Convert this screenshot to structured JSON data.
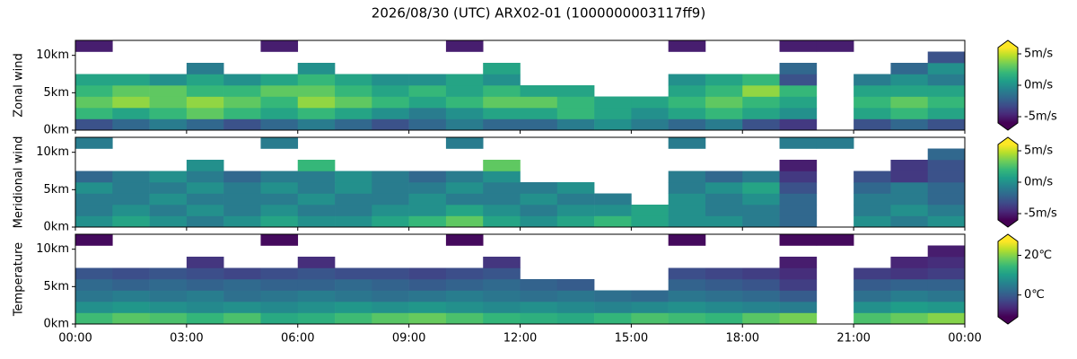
{
  "title": "2026/08/30 (UTC) ARX02-01 (1000000003117ff9)",
  "chart_data": [
    {
      "type": "heatmap",
      "ylabel": "Zonal wind",
      "colormap": "viridis",
      "xbins": [
        0,
        1,
        2,
        3,
        4,
        5,
        6,
        7,
        8,
        9,
        10,
        11,
        12,
        13,
        14,
        15,
        16,
        17,
        18,
        19,
        20,
        21,
        22,
        23,
        24
      ],
      "ybins": [
        0,
        1.5,
        3,
        4.5,
        6,
        7.5,
        9,
        10.5,
        12
      ],
      "ylim": [
        0,
        12
      ],
      "yticks": [
        {
          "value": 0,
          "label": "0km"
        },
        {
          "value": 5,
          "label": "5km"
        },
        {
          "value": 10,
          "label": "10km"
        }
      ],
      "clim": [
        -6,
        6
      ],
      "colorbar_extend": "both",
      "cticks": [
        {
          "value": 5,
          "label": "5m/s"
        },
        {
          "value": 0,
          "label": "0m/s"
        },
        {
          "value": -5,
          "label": "-5m/s"
        }
      ],
      "values": [
        [
          -3,
          -2,
          -1,
          -2,
          -3,
          -2,
          -1,
          -2,
          -3,
          -2,
          -1,
          -2,
          -2,
          -1,
          0,
          -1,
          -2,
          -1,
          -3,
          -4,
          null,
          -3,
          -2,
          -3
        ],
        [
          2,
          1,
          2,
          3,
          2,
          1,
          2,
          1,
          0,
          -1,
          0,
          1,
          1,
          2,
          1,
          0,
          1,
          2,
          1,
          0,
          null,
          1,
          2,
          1
        ],
        [
          3,
          4,
          3,
          4,
          3,
          2,
          4,
          3,
          2,
          1,
          2,
          3,
          3,
          2,
          1,
          1,
          2,
          3,
          2,
          1,
          null,
          2,
          3,
          2
        ],
        [
          2,
          3,
          3,
          2,
          2,
          3,
          3,
          2,
          1,
          2,
          1,
          2,
          1,
          1,
          null,
          null,
          1,
          2,
          4,
          2,
          null,
          1,
          1,
          1
        ],
        [
          1,
          1,
          0,
          1,
          0,
          1,
          2,
          1,
          0,
          0,
          1,
          0,
          null,
          null,
          null,
          null,
          0,
          1,
          2,
          -3,
          null,
          -1,
          0,
          -1
        ],
        [
          null,
          null,
          null,
          -1,
          null,
          null,
          0,
          null,
          null,
          null,
          null,
          1,
          null,
          null,
          null,
          null,
          null,
          null,
          null,
          -2,
          null,
          null,
          -2,
          0
        ],
        [
          null,
          null,
          null,
          null,
          null,
          null,
          null,
          null,
          null,
          null,
          null,
          null,
          null,
          null,
          null,
          null,
          null,
          null,
          null,
          null,
          null,
          null,
          null,
          -3
        ],
        [
          -5,
          null,
          null,
          null,
          null,
          -5,
          null,
          null,
          null,
          null,
          -5,
          null,
          null,
          null,
          null,
          null,
          -5,
          null,
          null,
          -5,
          -5,
          null,
          null,
          null
        ]
      ]
    },
    {
      "type": "heatmap",
      "ylabel": "Meridional wind",
      "colormap": "viridis",
      "xbins": [
        0,
        1,
        2,
        3,
        4,
        5,
        6,
        7,
        8,
        9,
        10,
        11,
        12,
        13,
        14,
        15,
        16,
        17,
        18,
        19,
        20,
        21,
        22,
        23,
        24
      ],
      "ybins": [
        0,
        1.5,
        3,
        4.5,
        6,
        7.5,
        9,
        10.5,
        12
      ],
      "ylim": [
        0,
        12
      ],
      "yticks": [
        {
          "value": 0,
          "label": "0km"
        },
        {
          "value": 5,
          "label": "5km"
        },
        {
          "value": 10,
          "label": "10km"
        }
      ],
      "clim": [
        -6,
        6
      ],
      "colorbar_extend": "both",
      "cticks": [
        {
          "value": 5,
          "label": "5m/s"
        },
        {
          "value": 0,
          "label": "0m/s"
        },
        {
          "value": -5,
          "label": "-5m/s"
        }
      ],
      "values": [
        [
          0,
          1,
          0,
          -1,
          0,
          1,
          0,
          0,
          1,
          2,
          3,
          1,
          0,
          1,
          2,
          1,
          0,
          0,
          -1,
          -2,
          null,
          0,
          -1,
          0
        ],
        [
          -1,
          0,
          -1,
          0,
          -1,
          0,
          -1,
          -1,
          0,
          0,
          1,
          0,
          -1,
          0,
          0,
          1,
          0,
          -1,
          -1,
          -2,
          null,
          -1,
          0,
          -1
        ],
        [
          -1,
          -1,
          0,
          -1,
          -1,
          -1,
          0,
          -1,
          -1,
          0,
          -1,
          -1,
          0,
          -1,
          -1,
          null,
          0,
          -1,
          0,
          -2,
          null,
          -1,
          -1,
          -2
        ],
        [
          0,
          -1,
          -1,
          0,
          -1,
          0,
          -1,
          0,
          -1,
          -1,
          0,
          -1,
          -1,
          0,
          null,
          null,
          -1,
          0,
          1,
          -3,
          null,
          -2,
          -1,
          -2
        ],
        [
          -2,
          -1,
          0,
          -1,
          -2,
          -1,
          -1,
          0,
          -1,
          -2,
          -1,
          0,
          null,
          null,
          null,
          null,
          -1,
          -2,
          -1,
          -4,
          null,
          -3,
          -4,
          -3
        ],
        [
          null,
          null,
          null,
          0,
          null,
          null,
          2,
          null,
          null,
          null,
          null,
          3,
          null,
          null,
          null,
          null,
          null,
          null,
          null,
          -5,
          null,
          null,
          -4,
          -3
        ],
        [
          null,
          null,
          null,
          null,
          null,
          null,
          null,
          null,
          null,
          null,
          null,
          null,
          null,
          null,
          null,
          null,
          null,
          null,
          null,
          null,
          null,
          null,
          null,
          -2
        ],
        [
          -1,
          null,
          null,
          null,
          null,
          -1,
          null,
          null,
          null,
          null,
          -1,
          null,
          null,
          null,
          null,
          null,
          -1,
          null,
          null,
          -1,
          -1,
          null,
          null,
          null
        ]
      ]
    },
    {
      "type": "heatmap",
      "ylabel": "Temperature",
      "colormap": "viridis",
      "xbins": [
        0,
        1,
        2,
        3,
        4,
        5,
        6,
        7,
        8,
        9,
        10,
        11,
        12,
        13,
        14,
        15,
        16,
        17,
        18,
        19,
        20,
        21,
        22,
        23,
        24
      ],
      "ybins": [
        0,
        1.5,
        3,
        4.5,
        6,
        7.5,
        9,
        10.5,
        12
      ],
      "xlim": [
        0,
        24
      ],
      "xticks": [
        {
          "value": 0,
          "label": "00:00"
        },
        {
          "value": 3,
          "label": "03:00"
        },
        {
          "value": 6,
          "label": "06:00"
        },
        {
          "value": 9,
          "label": "09:00"
        },
        {
          "value": 12,
          "label": "12:00"
        },
        {
          "value": 15,
          "label": "15:00"
        },
        {
          "value": 18,
          "label": "18:00"
        },
        {
          "value": 21,
          "label": "21:00"
        },
        {
          "value": 24,
          "label": "00:00"
        }
      ],
      "ylim": [
        0,
        12
      ],
      "yticks": [
        {
          "value": 0,
          "label": "0km"
        },
        {
          "value": 5,
          "label": "5km"
        },
        {
          "value": 10,
          "label": "10km"
        }
      ],
      "clim": [
        -11,
        27
      ],
      "colorbar_extend": "both",
      "cticks": [
        {
          "value": 20,
          "label": "20℃"
        },
        {
          "value": 0,
          "label": "0℃"
        }
      ],
      "values": [
        [
          15,
          17,
          16,
          14,
          16,
          12,
          13,
          15,
          17,
          18,
          16,
          14,
          13,
          12,
          14,
          16,
          15,
          14,
          17,
          19,
          null,
          16,
          18,
          20
        ],
        [
          8,
          9,
          8,
          7,
          8,
          7,
          8,
          9,
          8,
          9,
          8,
          7,
          8,
          7,
          6,
          7,
          8,
          7,
          6,
          5,
          null,
          8,
          10,
          9
        ],
        [
          4,
          5,
          4,
          5,
          3,
          4,
          5,
          4,
          3,
          4,
          5,
          4,
          3,
          4,
          3,
          2,
          4,
          3,
          2,
          0,
          null,
          3,
          5,
          4
        ],
        [
          2,
          1,
          2,
          1,
          2,
          1,
          1,
          2,
          1,
          0,
          1,
          2,
          1,
          0,
          null,
          null,
          1,
          0,
          -1,
          -4,
          null,
          0,
          1,
          1
        ],
        [
          -1,
          -2,
          -1,
          -2,
          -3,
          -2,
          -1,
          -2,
          -2,
          -3,
          -2,
          -1,
          null,
          null,
          null,
          null,
          -2,
          -3,
          -4,
          -6,
          null,
          -4,
          -5,
          -4
        ],
        [
          null,
          null,
          null,
          -5,
          null,
          null,
          -6,
          null,
          null,
          null,
          null,
          -5,
          null,
          null,
          null,
          null,
          null,
          null,
          null,
          -8,
          null,
          null,
          -7,
          -6
        ],
        [
          null,
          null,
          null,
          null,
          null,
          null,
          null,
          null,
          null,
          null,
          null,
          null,
          null,
          null,
          null,
          null,
          null,
          null,
          null,
          null,
          null,
          null,
          null,
          -8
        ],
        [
          -10,
          null,
          null,
          null,
          null,
          -10,
          null,
          null,
          null,
          null,
          -10,
          null,
          null,
          null,
          null,
          null,
          -10,
          null,
          null,
          -10,
          -10,
          null,
          null,
          null
        ]
      ]
    }
  ]
}
